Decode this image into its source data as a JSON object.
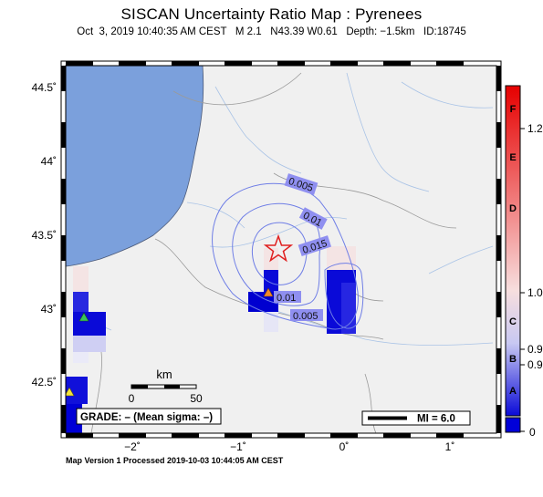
{
  "title": "SISCAN Uncertainty Ratio Map : Pyrenees",
  "subtitle": "Oct  3, 2019 10:40:35 AM CEST   M 2.1   N43.39 W0.61   Depth: −1.5km   ID:18745",
  "footer": "Map Version 1 Processed 2019-10-03 10:44:05 AM CEST",
  "map": {
    "lat_ticks": [
      "44.5˚",
      "44˚",
      "43.5˚",
      "43˚",
      "42.5˚"
    ],
    "lon_ticks": [
      "−2˚",
      "−1˚",
      "0˚",
      "1˚"
    ],
    "contour_labels": [
      "0.005",
      "0.01",
      "0.015",
      "0.01",
      "0.005"
    ],
    "scale_unit": "km",
    "scale_start": "0",
    "scale_end": "50",
    "grade_box": "GRADE: – (Mean sigma: –)",
    "mi_legend": "MI = 6.0",
    "colors": {
      "sea": "#7ba0dc",
      "land": "#f0f0f0",
      "contour": "#5a6ee6",
      "epicenter": "#e02020"
    }
  },
  "colorbar": {
    "letters": [
      "F",
      "E",
      "D",
      "C",
      "B",
      "A"
    ],
    "values": [
      "1.2",
      "1.0",
      "0.9",
      "0.9",
      "0"
    ],
    "colors": {
      "top": "#e80000",
      "mid": "#f6d6d6",
      "bottom": "#0000d8"
    }
  }
}
